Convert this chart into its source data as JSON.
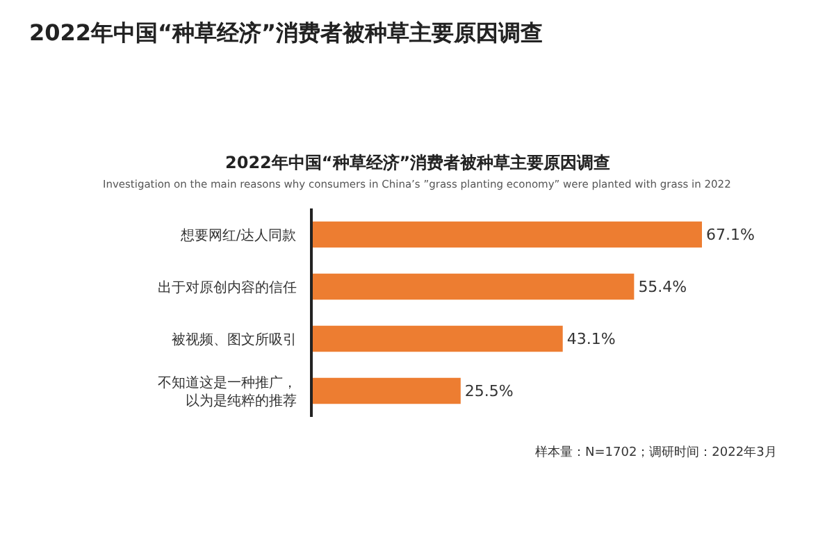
{
  "chart_data": {
    "type": "bar",
    "orientation": "horizontal",
    "title": "2022年中国“种草经济”消费者被种草主要原因调查",
    "subtitle": "2022年中国“种草经济”消费者被种草主要原因调查",
    "annotations": [
      "Investigation on the main reasons why consumers in China’s ”grass planting economy” were planted with grass in 2022",
      "样本量：N=1702；调研时间：2022年3月"
    ],
    "categories": [
      "想要网红/达人同款",
      "出于对原创内容的信任",
      "被视频、图文所吸引",
      "不知道这是一种推广，以为是纯粹的推荐"
    ],
    "values": [
      67.1,
      55.4,
      43.1,
      25.5
    ],
    "value_labels": [
      "67.1%",
      "55.4%",
      "43.1%",
      "25.5%"
    ],
    "color": "#ed7d31"
  }
}
